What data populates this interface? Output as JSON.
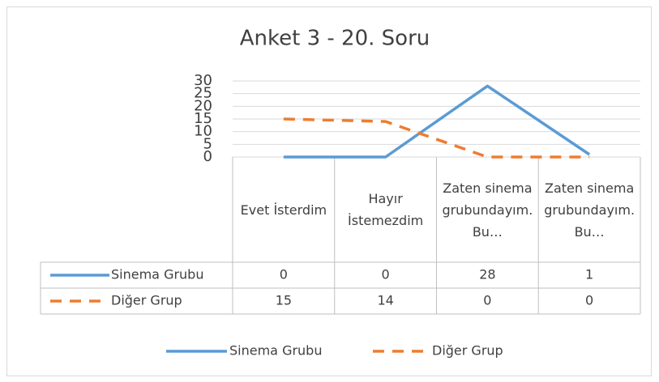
{
  "chart_data": {
    "type": "line",
    "title": "Anket 3 - 20. Soru",
    "categories": [
      "Evet İsterdim",
      "Hayır İstemezdim",
      "Zaten sinema grubundayım. Bu…",
      "Zaten sinema grubundayım. Bu…"
    ],
    "series": [
      {
        "name": "Sinema Grubu",
        "color": "#5b9bd5",
        "values": [
          0,
          0,
          28,
          1
        ]
      },
      {
        "name": "Diğer Grup",
        "color": "#ed7d31",
        "values": [
          15,
          14,
          0,
          0
        ],
        "dashed": true
      }
    ],
    "ylim": [
      0,
      30
    ],
    "yticks": [
      0,
      5,
      10,
      15,
      20,
      25,
      30
    ],
    "grid": true,
    "legend": "bottom",
    "data_table": true
  }
}
